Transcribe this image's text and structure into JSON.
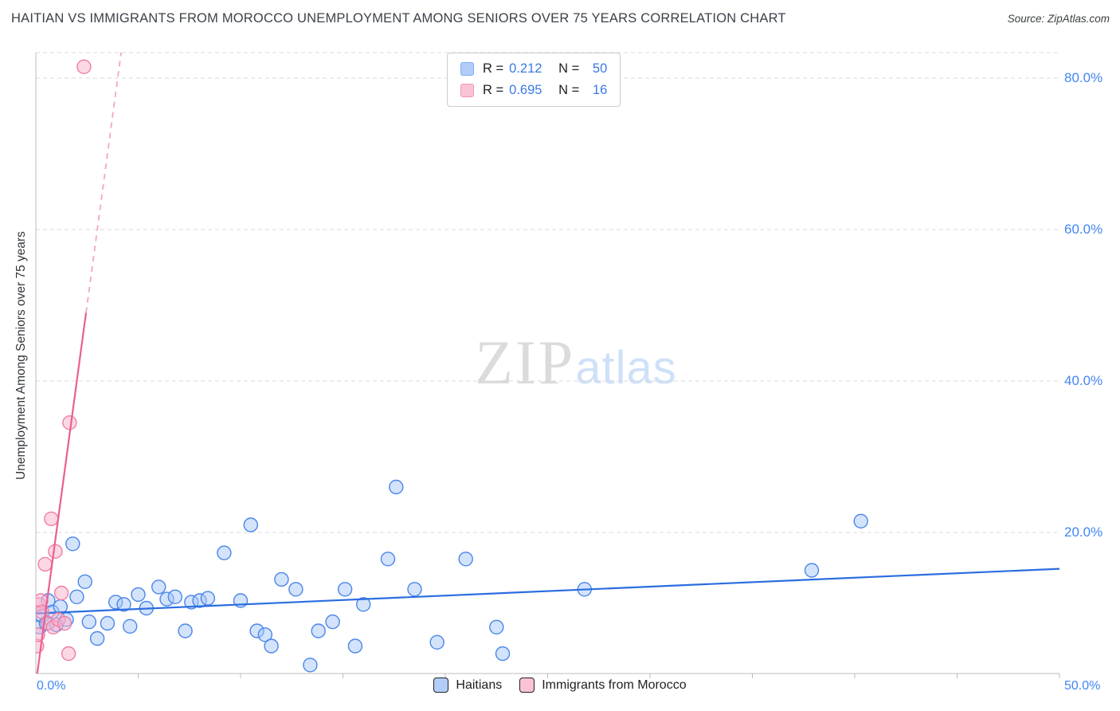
{
  "header": {
    "title": "HAITIAN VS IMMIGRANTS FROM MOROCCO UNEMPLOYMENT AMONG SENIORS OVER 75 YEARS CORRELATION CHART",
    "source": "Source: ZipAtlas.com"
  },
  "watermark": {
    "part1": "ZIP",
    "part2": "atlas"
  },
  "correlation_legend": {
    "series": [
      {
        "r_label": "R =",
        "r_value": "0.212",
        "n_label": "N =",
        "n_value": "50"
      },
      {
        "r_label": "R =",
        "r_value": "0.695",
        "n_label": "N =",
        "n_value": "16"
      }
    ]
  },
  "bottom_legend": [
    {
      "label": "Haitians",
      "color": "#b3cdf9"
    },
    {
      "label": "Immigrants from Morocco",
      "color": "#fbc3d6"
    }
  ],
  "colors": {
    "accent_blue": "#4285f4",
    "value_blue": "#3b78e7",
    "grid": "#d9d9d9",
    "axis": "#bcbcbc"
  },
  "chart_data": {
    "type": "scatter",
    "title": "HAITIAN VS IMMIGRANTS FROM MOROCCO UNEMPLOYMENT AMONG SENIORS OVER 75 YEARS CORRELATION CHART",
    "xlabel": "",
    "ylabel": "Unemployment Among Seniors over 75 years",
    "xlim": [
      0,
      50
    ],
    "ylim": [
      0,
      84
    ],
    "grid": true,
    "legend_position": "bottom-center",
    "x_ticks": [
      5,
      10,
      15,
      20,
      25,
      30,
      35,
      40,
      45,
      50
    ],
    "x_tick_labels": [
      "0.0%",
      "50.0%"
    ],
    "grid_y": [
      20,
      40,
      60,
      80
    ],
    "y_ticks": [
      {
        "value": 80,
        "label": "80.0%"
      },
      {
        "value": 60,
        "label": "60.0%"
      },
      {
        "value": 40,
        "label": "40.0%"
      },
      {
        "value": 20,
        "label": "20.0%"
      }
    ],
    "series": [
      {
        "id": "haitians",
        "name": "Haitians",
        "r": 0.212,
        "n": 50,
        "point_fill": "#a8c7fa",
        "point_stroke": "#4a86e8",
        "trend_color": "#2b6de0",
        "trend": {
          "x1": 0,
          "y1": 9.3,
          "x2": 50,
          "y2": 15.2
        },
        "points": [
          [
            0.2,
            7.5
          ],
          [
            0.3,
            9.0
          ],
          [
            0.5,
            8.0
          ],
          [
            0.6,
            11.0
          ],
          [
            0.8,
            9.5
          ],
          [
            1.0,
            7.8
          ],
          [
            1.2,
            10.2
          ],
          [
            1.5,
            8.5
          ],
          [
            1.8,
            18.5
          ],
          [
            2.0,
            11.5
          ],
          [
            2.4,
            13.5
          ],
          [
            2.6,
            8.2
          ],
          [
            3.0,
            6.0
          ],
          [
            3.5,
            8.0
          ],
          [
            3.9,
            10.8
          ],
          [
            4.3,
            10.5
          ],
          [
            4.6,
            7.6
          ],
          [
            5.0,
            11.8
          ],
          [
            5.4,
            10.0
          ],
          [
            6.0,
            12.8
          ],
          [
            6.4,
            11.2
          ],
          [
            6.8,
            11.5
          ],
          [
            7.3,
            7.0
          ],
          [
            7.6,
            10.8
          ],
          [
            8.0,
            11.0
          ],
          [
            8.4,
            11.3
          ],
          [
            9.2,
            17.3
          ],
          [
            10.0,
            11.0
          ],
          [
            10.5,
            21.0
          ],
          [
            10.8,
            7.0
          ],
          [
            11.2,
            6.5
          ],
          [
            11.5,
            5.0
          ],
          [
            12.0,
            13.8
          ],
          [
            12.7,
            12.5
          ],
          [
            13.4,
            2.5
          ],
          [
            13.8,
            7.0
          ],
          [
            14.5,
            8.2
          ],
          [
            15.1,
            12.5
          ],
          [
            15.6,
            5.0
          ],
          [
            16.0,
            10.5
          ],
          [
            17.2,
            16.5
          ],
          [
            17.6,
            26.0
          ],
          [
            18.5,
            12.5
          ],
          [
            19.6,
            5.5
          ],
          [
            21.0,
            16.5
          ],
          [
            22.5,
            7.5
          ],
          [
            22.8,
            4.0
          ],
          [
            26.8,
            12.5
          ],
          [
            37.9,
            15.0
          ],
          [
            40.3,
            21.5
          ]
        ]
      },
      {
        "id": "morocco",
        "name": "Immigrants from Morocco",
        "r": 0.695,
        "n": 16,
        "point_fill": "#f9b1ca",
        "point_stroke": "#ef7da7",
        "trend_color": "#ea5f92",
        "trend": {
          "x1": 0,
          "y1": 0,
          "x2": 2.45,
          "y2": 49,
          "dash": {
            "x": 4.2,
            "y": 84,
            "color": "#f3a6c2"
          }
        },
        "points": [
          [
            0.05,
            5.0
          ],
          [
            0.1,
            6.5
          ],
          [
            0.15,
            10.5
          ],
          [
            0.25,
            11.0
          ],
          [
            0.3,
            9.5
          ],
          [
            0.45,
            15.8
          ],
          [
            0.6,
            8.0
          ],
          [
            0.75,
            21.8
          ],
          [
            0.85,
            7.5
          ],
          [
            0.95,
            17.5
          ],
          [
            1.1,
            8.5
          ],
          [
            1.25,
            12.0
          ],
          [
            1.4,
            8.0
          ],
          [
            1.6,
            4.0
          ],
          [
            1.65,
            34.5
          ],
          [
            2.35,
            81.5
          ]
        ]
      }
    ]
  }
}
